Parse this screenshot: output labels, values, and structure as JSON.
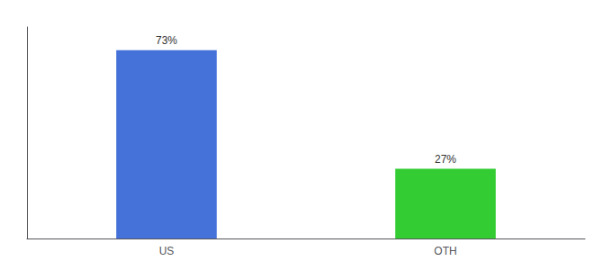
{
  "chart_data": {
    "type": "bar",
    "categories": [
      "US",
      "OTH"
    ],
    "values": [
      73,
      27
    ],
    "value_labels": [
      "73%",
      "27%"
    ],
    "colors": [
      "#4472d9",
      "#33cc33"
    ],
    "ylim": [
      0,
      82
    ],
    "grid": false,
    "data_labels": true,
    "tick_labels": "x"
  }
}
